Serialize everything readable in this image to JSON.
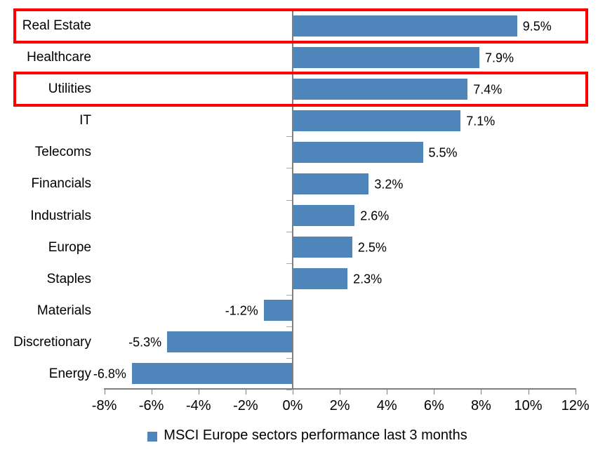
{
  "chart_data": {
    "type": "bar",
    "orientation": "horizontal",
    "title": "",
    "categories": [
      "Real Estate",
      "Healthcare",
      "Utilities",
      "IT",
      "Telecoms",
      "Financials",
      "Industrials",
      "Europe",
      "Staples",
      "Materials",
      "Discretionary",
      "Energy"
    ],
    "values": [
      9.5,
      7.9,
      7.4,
      7.1,
      5.5,
      3.2,
      2.6,
      2.5,
      2.3,
      -1.2,
      -5.3,
      -6.8
    ],
    "value_labels": [
      "9.5%",
      "7.9%",
      "7.4%",
      "7.1%",
      "5.5%",
      "3.2%",
      "2.6%",
      "2.5%",
      "2.3%",
      "-1.2%",
      "-5.3%",
      "-6.8%"
    ],
    "x_axis": {
      "min": -8,
      "max": 12,
      "step": 2,
      "tick_labels": [
        "-8%",
        "-6%",
        "-4%",
        "-2%",
        "0%",
        "2%",
        "4%",
        "6%",
        "8%",
        "10%",
        "12%"
      ]
    },
    "legend": {
      "label": "MSCI Europe sectors performance last 3 months",
      "position": "bottom",
      "marker": "square"
    },
    "highlighted_categories": [
      "Real Estate",
      "Utilities"
    ],
    "grid": false,
    "colors": {
      "bar": "#4E86BC",
      "highlight_box": "#FF0000",
      "axis_line": "#7F7F7F",
      "boundary_tick": "#ABABAB",
      "text": "#000000",
      "background": "#FFFFFF"
    }
  }
}
